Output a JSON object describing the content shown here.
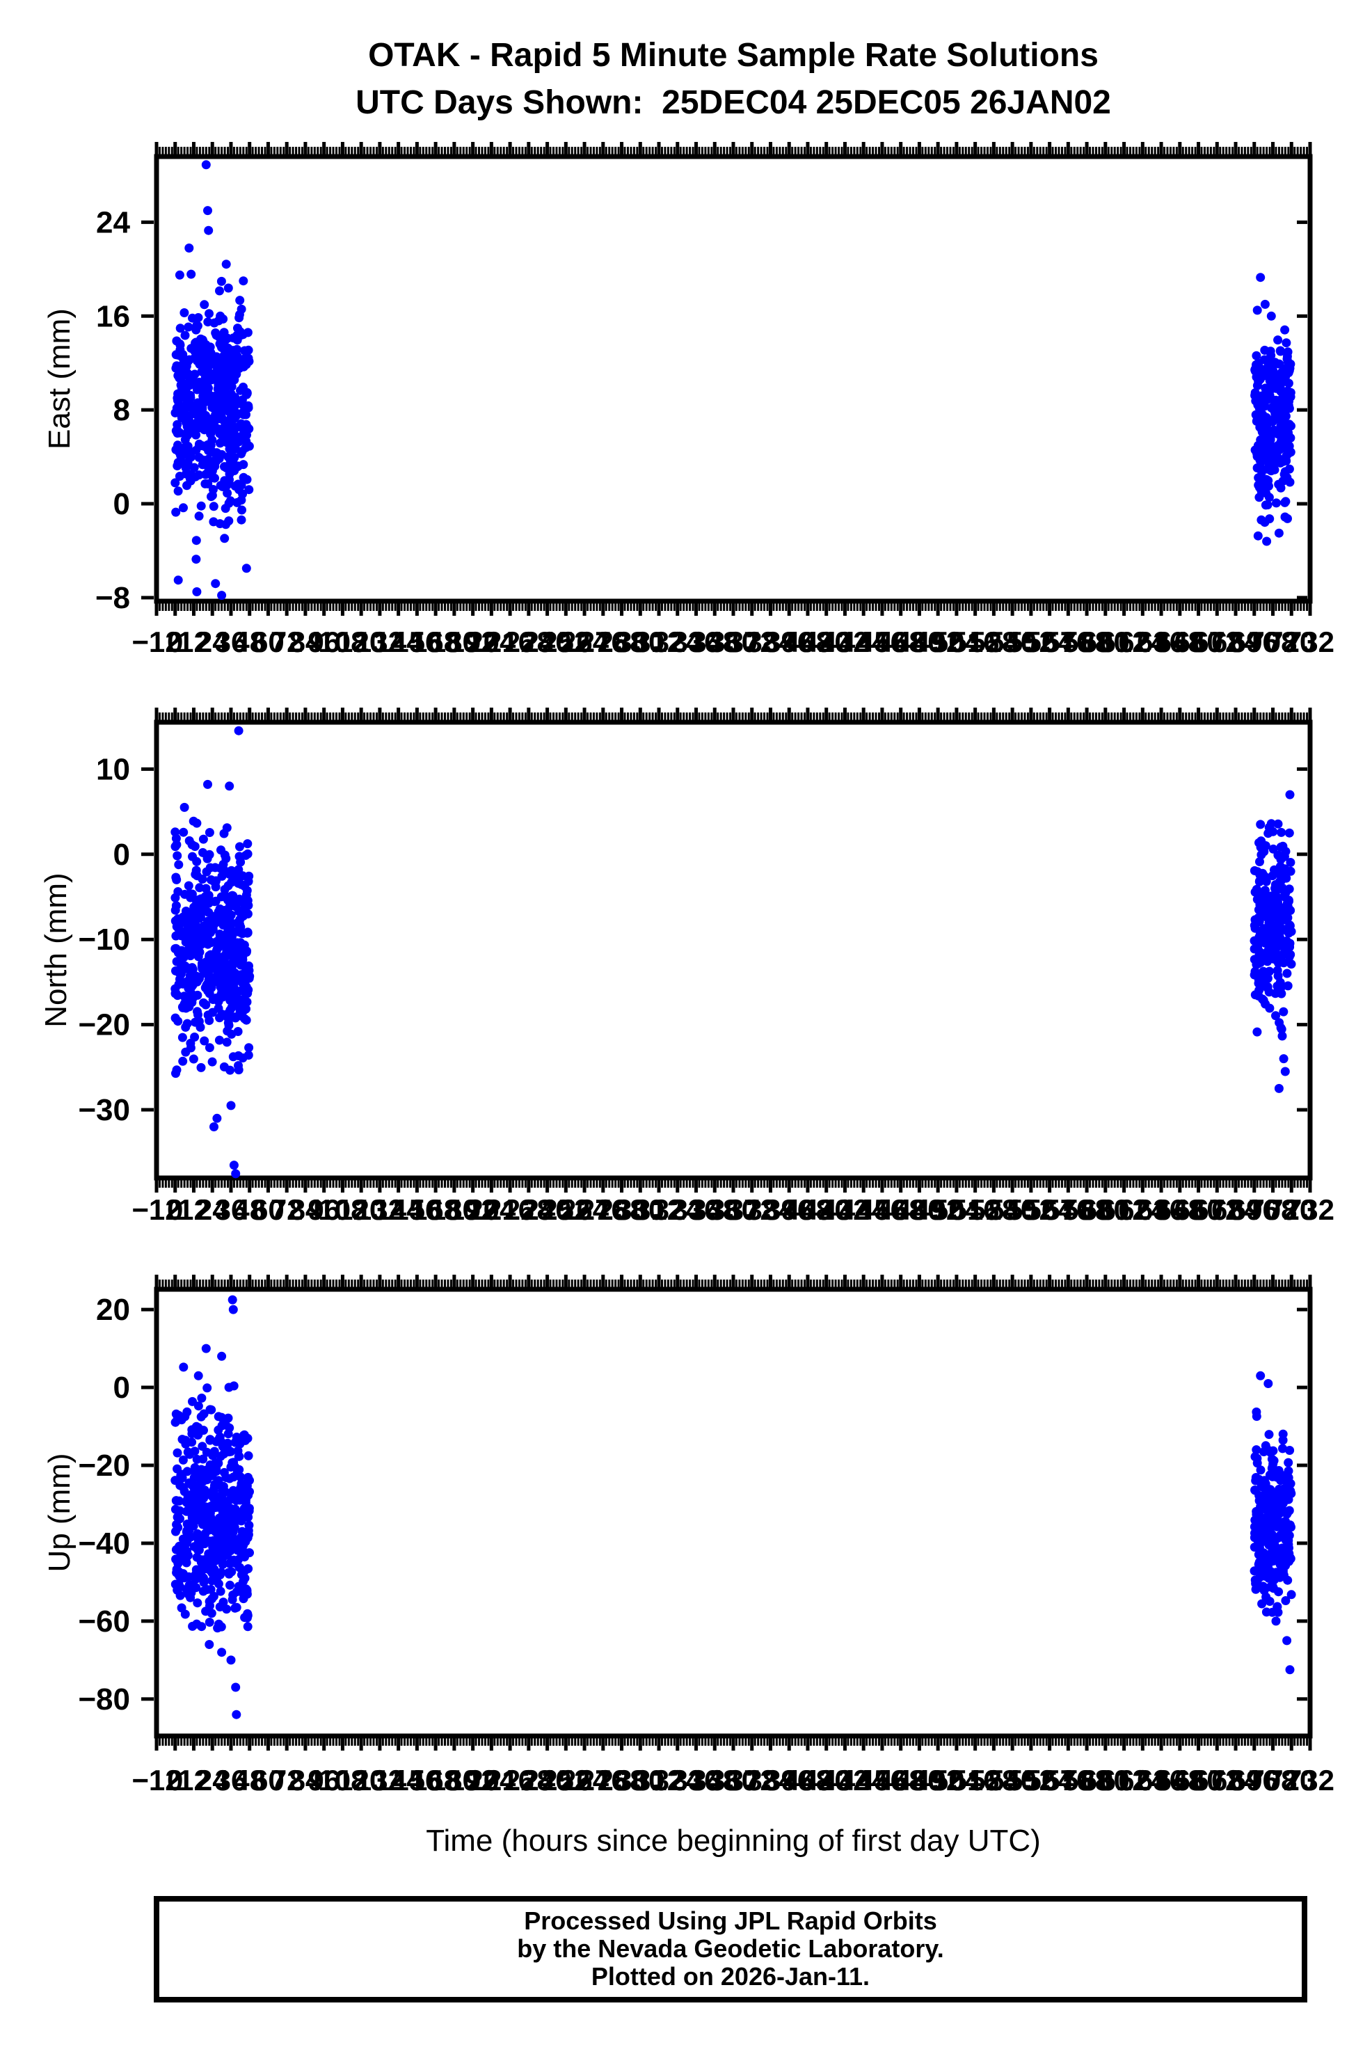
{
  "title": {
    "line1": "OTAK - Rapid 5 Minute Sample Rate Solutions",
    "line2": "UTC Days Shown:  25DEC04 25DEC05 26JAN02"
  },
  "footer": {
    "lines": [
      "Processed Using JPL Rapid Orbits",
      "by the Nevada Geodetic Laboratory.",
      "Plotted on 2026-Jan-11."
    ]
  },
  "colors": {
    "point": "#0000ff",
    "axis": "#000000",
    "background": "#ffffff"
  },
  "x_axis": {
    "label": "Time (hours since beginning of first day UTC)",
    "xlim": [
      -12,
      732
    ],
    "major_tick_step": 12,
    "minor_tick_step": 2,
    "first_label": -12,
    "last_label": 732
  },
  "chart_data": [
    {
      "type": "scatter",
      "series_name": "East",
      "ylabel": "East (mm)",
      "yticks": [
        24,
        16,
        8,
        0,
        -8
      ],
      "ylim": [
        -8.3,
        29.6
      ],
      "xlim": [
        -12,
        732
      ],
      "clusters": [
        {
          "name": "days-25DEC04-25DEC05",
          "n": 520,
          "x_range": [
            0,
            48
          ],
          "y_mean": 8.5,
          "y_std": 4.3,
          "y_min": -7.9,
          "y_max": 21.5,
          "seed": 101
        },
        {
          "name": "day-26JAN02",
          "n": 270,
          "x_range": [
            696,
            720
          ],
          "y_mean": 7.0,
          "y_std": 3.6,
          "y_min": -3.4,
          "y_max": 15.0,
          "seed": 102
        }
      ],
      "outliers": [
        [
          20,
          28.9
        ],
        [
          21,
          25.0
        ],
        [
          21.5,
          23.3
        ],
        [
          9,
          21.8
        ],
        [
          3,
          19.5
        ],
        [
          44,
          19.0
        ],
        [
          2,
          -6.5
        ],
        [
          26,
          -6.8
        ],
        [
          30,
          -7.8
        ],
        [
          14,
          -7.5
        ],
        [
          46,
          -5.5
        ],
        [
          700,
          19.3
        ],
        [
          703,
          17.0
        ],
        [
          698,
          16.5
        ],
        [
          707,
          16.0
        ],
        [
          712,
          -2.5
        ],
        [
          704,
          -3.2
        ]
      ]
    },
    {
      "type": "scatter",
      "series_name": "North",
      "ylabel": "North (mm)",
      "yticks": [
        10,
        0,
        -10,
        -20,
        -30
      ],
      "ylim": [
        -38.0,
        15.5
      ],
      "xlim": [
        -12,
        732
      ],
      "clusters": [
        {
          "name": "days-25DEC04-25DEC05",
          "n": 520,
          "x_range": [
            0,
            48
          ],
          "y_mean": -10.5,
          "y_std": 6.0,
          "y_min": -26.0,
          "y_max": 4.0,
          "seed": 201
        },
        {
          "name": "day-26JAN02",
          "n": 270,
          "x_range": [
            696,
            720
          ],
          "y_mean": -8.0,
          "y_std": 5.5,
          "y_min": -23.0,
          "y_max": 4.0,
          "seed": 202
        }
      ],
      "outliers": [
        [
          41,
          14.5
        ],
        [
          21,
          8.2
        ],
        [
          35,
          8.0
        ],
        [
          6,
          5.5
        ],
        [
          38,
          -36.5
        ],
        [
          39,
          -37.5
        ],
        [
          25,
          -32.0
        ],
        [
          27,
          -31.0
        ],
        [
          36,
          -29.5
        ],
        [
          719,
          7.0
        ],
        [
          700,
          3.5
        ],
        [
          715,
          -24.0
        ],
        [
          716,
          -25.5
        ],
        [
          712,
          -27.5
        ]
      ]
    },
    {
      "type": "scatter",
      "series_name": "Up",
      "ylabel": "Up (mm)",
      "yticks": [
        20,
        0,
        -20,
        -40,
        -60,
        -80
      ],
      "ylim": [
        -89.5,
        25.2
      ],
      "xlim": [
        -12,
        732
      ],
      "clusters": [
        {
          "name": "days-25DEC04-25DEC05",
          "n": 520,
          "x_range": [
            0,
            48
          ],
          "y_mean": -34.0,
          "y_std": 14.0,
          "y_min": -62.0,
          "y_max": 8.0,
          "seed": 301
        },
        {
          "name": "day-26JAN02",
          "n": 270,
          "x_range": [
            696,
            720
          ],
          "y_mean": -35.0,
          "y_std": 11.0,
          "y_min": -58.0,
          "y_max": 0.0,
          "seed": 302
        }
      ],
      "outliers": [
        [
          37,
          22.5
        ],
        [
          37.5,
          20.0
        ],
        [
          20,
          10.0
        ],
        [
          30,
          8.0
        ],
        [
          15,
          3.0
        ],
        [
          39,
          -77.0
        ],
        [
          39.5,
          -84.0
        ],
        [
          36,
          -70.0
        ],
        [
          30,
          -68.0
        ],
        [
          22,
          -66.0
        ],
        [
          700,
          3.0
        ],
        [
          705,
          1.0
        ],
        [
          717,
          -65.0
        ],
        [
          719,
          -72.5
        ],
        [
          710,
          -60.0
        ]
      ]
    }
  ],
  "point_radius": 6.5
}
